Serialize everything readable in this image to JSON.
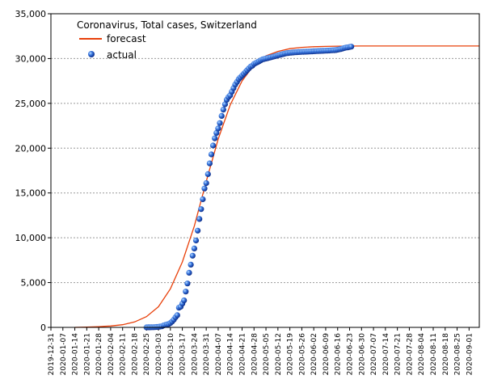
{
  "chart_data": {
    "type": "line",
    "title": "Coronavirus, Total cases, Switzerland",
    "legend": {
      "placement": "top-left",
      "entries": [
        {
          "name": "forecast",
          "marker": "line",
          "color": "#e8400a"
        },
        {
          "name": "actual",
          "marker": "point",
          "color": "#1a4fc4"
        }
      ]
    },
    "ylim": [
      0,
      35000
    ],
    "y_ticks": [
      "0",
      "5,000",
      "10,000",
      "15,000",
      "20,000",
      "25,000",
      "30,000",
      "35,000"
    ],
    "y_tick_values": [
      0,
      5000,
      10000,
      15000,
      20000,
      25000,
      30000,
      35000
    ],
    "x_ticks": [
      "2019-12-31",
      "2020-01-07",
      "2020-01-14",
      "2020-01-21",
      "2020-01-28",
      "2020-02-04",
      "2020-02-11",
      "2020-02-18",
      "2020-02-25",
      "2020-03-03",
      "2020-03-10",
      "2020-03-17",
      "2020-03-24",
      "2020-03-31",
      "2020-04-07",
      "2020-04-14",
      "2020-04-21",
      "2020-04-28",
      "2020-05-05",
      "2020-05-12",
      "2020-05-19",
      "2020-05-26",
      "2020-06-02",
      "2020-06-09",
      "2020-06-16",
      "2020-06-23",
      "2020-06-30",
      "2020-07-07",
      "2020-07-14",
      "2020-07-21",
      "2020-07-28",
      "2020-08-04",
      "2020-08-11",
      "2020-08-18",
      "2020-08-25",
      "2020-09-01"
    ],
    "xlim": [
      "2019-12-31",
      "2020-09-07"
    ],
    "grid": "horizontal dashed",
    "series": [
      {
        "name": "forecast",
        "type": "line",
        "color": "#e8400a",
        "points": [
          [
            "2020-01-14",
            0
          ],
          [
            "2020-01-21",
            30
          ],
          [
            "2020-01-28",
            80
          ],
          [
            "2020-02-04",
            150
          ],
          [
            "2020-02-11",
            300
          ],
          [
            "2020-02-18",
            600
          ],
          [
            "2020-02-25",
            1200
          ],
          [
            "2020-03-03",
            2300
          ],
          [
            "2020-03-10",
            4300
          ],
          [
            "2020-03-17",
            7300
          ],
          [
            "2020-03-24",
            11300
          ],
          [
            "2020-03-31",
            16300
          ],
          [
            "2020-04-07",
            21000
          ],
          [
            "2020-04-14",
            24800
          ],
          [
            "2020-04-21",
            27500
          ],
          [
            "2020-04-28",
            29300
          ],
          [
            "2020-05-05",
            30300
          ],
          [
            "2020-05-12",
            30800
          ],
          [
            "2020-05-19",
            31100
          ],
          [
            "2020-05-26",
            31250
          ],
          [
            "2020-06-02",
            31320
          ],
          [
            "2020-06-09",
            31360
          ],
          [
            "2020-06-16",
            31380
          ],
          [
            "2020-06-23",
            31390
          ],
          [
            "2020-06-30",
            31400
          ],
          [
            "2020-07-07",
            31400
          ],
          [
            "2020-09-07",
            31400
          ]
        ]
      },
      {
        "name": "actual",
        "type": "scatter",
        "color": "#1a4fc4",
        "points": [
          [
            "2020-02-25",
            1
          ],
          [
            "2020-02-26",
            8
          ],
          [
            "2020-02-27",
            11
          ],
          [
            "2020-02-28",
            15
          ],
          [
            "2020-02-29",
            18
          ],
          [
            "2020-03-01",
            27
          ],
          [
            "2020-03-02",
            42
          ],
          [
            "2020-03-03",
            56
          ],
          [
            "2020-03-04",
            90
          ],
          [
            "2020-03-05",
            114
          ],
          [
            "2020-03-06",
            214
          ],
          [
            "2020-03-07",
            268
          ],
          [
            "2020-03-08",
            337
          ],
          [
            "2020-03-09",
            374
          ],
          [
            "2020-03-10",
            491
          ],
          [
            "2020-03-11",
            652
          ],
          [
            "2020-03-12",
            858
          ],
          [
            "2020-03-13",
            1125
          ],
          [
            "2020-03-14",
            1359
          ],
          [
            "2020-03-15",
            2200
          ],
          [
            "2020-03-16",
            2300
          ],
          [
            "2020-03-17",
            2650
          ],
          [
            "2020-03-18",
            3010
          ],
          [
            "2020-03-19",
            4000
          ],
          [
            "2020-03-20",
            4900
          ],
          [
            "2020-03-21",
            6100
          ],
          [
            "2020-03-22",
            7000
          ],
          [
            "2020-03-23",
            8000
          ],
          [
            "2020-03-24",
            8800
          ],
          [
            "2020-03-25",
            9700
          ],
          [
            "2020-03-26",
            10800
          ],
          [
            "2020-03-27",
            12100
          ],
          [
            "2020-03-28",
            13200
          ],
          [
            "2020-03-29",
            14300
          ],
          [
            "2020-03-30",
            15500
          ],
          [
            "2020-03-31",
            16100
          ],
          [
            "2020-04-01",
            17100
          ],
          [
            "2020-04-02",
            18300
          ],
          [
            "2020-04-03",
            19300
          ],
          [
            "2020-04-04",
            20300
          ],
          [
            "2020-04-05",
            21100
          ],
          [
            "2020-04-06",
            21700
          ],
          [
            "2020-04-07",
            22200
          ],
          [
            "2020-04-08",
            22800
          ],
          [
            "2020-04-09",
            23600
          ],
          [
            "2020-04-10",
            24300
          ],
          [
            "2020-04-11",
            24900
          ],
          [
            "2020-04-12",
            25400
          ],
          [
            "2020-04-13",
            25700
          ],
          [
            "2020-04-14",
            25900
          ],
          [
            "2020-04-15",
            26300
          ],
          [
            "2020-04-16",
            26700
          ],
          [
            "2020-04-17",
            27100
          ],
          [
            "2020-04-18",
            27400
          ],
          [
            "2020-04-19",
            27700
          ],
          [
            "2020-04-20",
            27900
          ],
          [
            "2020-04-21",
            28100
          ],
          [
            "2020-04-22",
            28300
          ],
          [
            "2020-04-23",
            28500
          ],
          [
            "2020-04-24",
            28700
          ],
          [
            "2020-04-25",
            28900
          ],
          [
            "2020-04-26",
            29100
          ],
          [
            "2020-04-27",
            29200
          ],
          [
            "2020-04-28",
            29400
          ],
          [
            "2020-04-29",
            29500
          ],
          [
            "2020-04-30",
            29600
          ],
          [
            "2020-05-01",
            29700
          ],
          [
            "2020-05-02",
            29800
          ],
          [
            "2020-05-03",
            29900
          ],
          [
            "2020-05-04",
            29950
          ],
          [
            "2020-05-05",
            30000
          ],
          [
            "2020-05-06",
            30050
          ],
          [
            "2020-05-07",
            30100
          ],
          [
            "2020-05-08",
            30150
          ],
          [
            "2020-05-09",
            30200
          ],
          [
            "2020-05-10",
            30250
          ],
          [
            "2020-05-11",
            30300
          ],
          [
            "2020-05-12",
            30350
          ],
          [
            "2020-05-13",
            30400
          ],
          [
            "2020-05-14",
            30450
          ],
          [
            "2020-05-15",
            30500
          ],
          [
            "2020-05-16",
            30550
          ],
          [
            "2020-05-17",
            30600
          ],
          [
            "2020-05-18",
            30620
          ],
          [
            "2020-05-19",
            30640
          ],
          [
            "2020-05-20",
            30660
          ],
          [
            "2020-05-21",
            30680
          ],
          [
            "2020-05-22",
            30700
          ],
          [
            "2020-05-23",
            30710
          ],
          [
            "2020-05-24",
            30720
          ],
          [
            "2020-05-25",
            30730
          ],
          [
            "2020-05-26",
            30740
          ],
          [
            "2020-05-27",
            30750
          ],
          [
            "2020-05-28",
            30760
          ],
          [
            "2020-05-29",
            30770
          ],
          [
            "2020-05-30",
            30780
          ],
          [
            "2020-05-31",
            30790
          ],
          [
            "2020-06-01",
            30800
          ],
          [
            "2020-06-02",
            30810
          ],
          [
            "2020-06-03",
            30820
          ],
          [
            "2020-06-04",
            30830
          ],
          [
            "2020-06-05",
            30840
          ],
          [
            "2020-06-06",
            30850
          ],
          [
            "2020-06-07",
            30860
          ],
          [
            "2020-06-08",
            30870
          ],
          [
            "2020-06-09",
            30880
          ],
          [
            "2020-06-10",
            30890
          ],
          [
            "2020-06-11",
            30900
          ],
          [
            "2020-06-12",
            30910
          ],
          [
            "2020-06-13",
            30920
          ],
          [
            "2020-06-14",
            30930
          ],
          [
            "2020-06-15",
            30950
          ],
          [
            "2020-06-16",
            30990
          ],
          [
            "2020-06-17",
            31030
          ],
          [
            "2020-06-18",
            31070
          ],
          [
            "2020-06-19",
            31120
          ],
          [
            "2020-06-20",
            31180
          ],
          [
            "2020-06-21",
            31230
          ],
          [
            "2020-06-22",
            31250
          ],
          [
            "2020-06-23",
            31290
          ],
          [
            "2020-06-24",
            31330
          ]
        ]
      }
    ]
  }
}
